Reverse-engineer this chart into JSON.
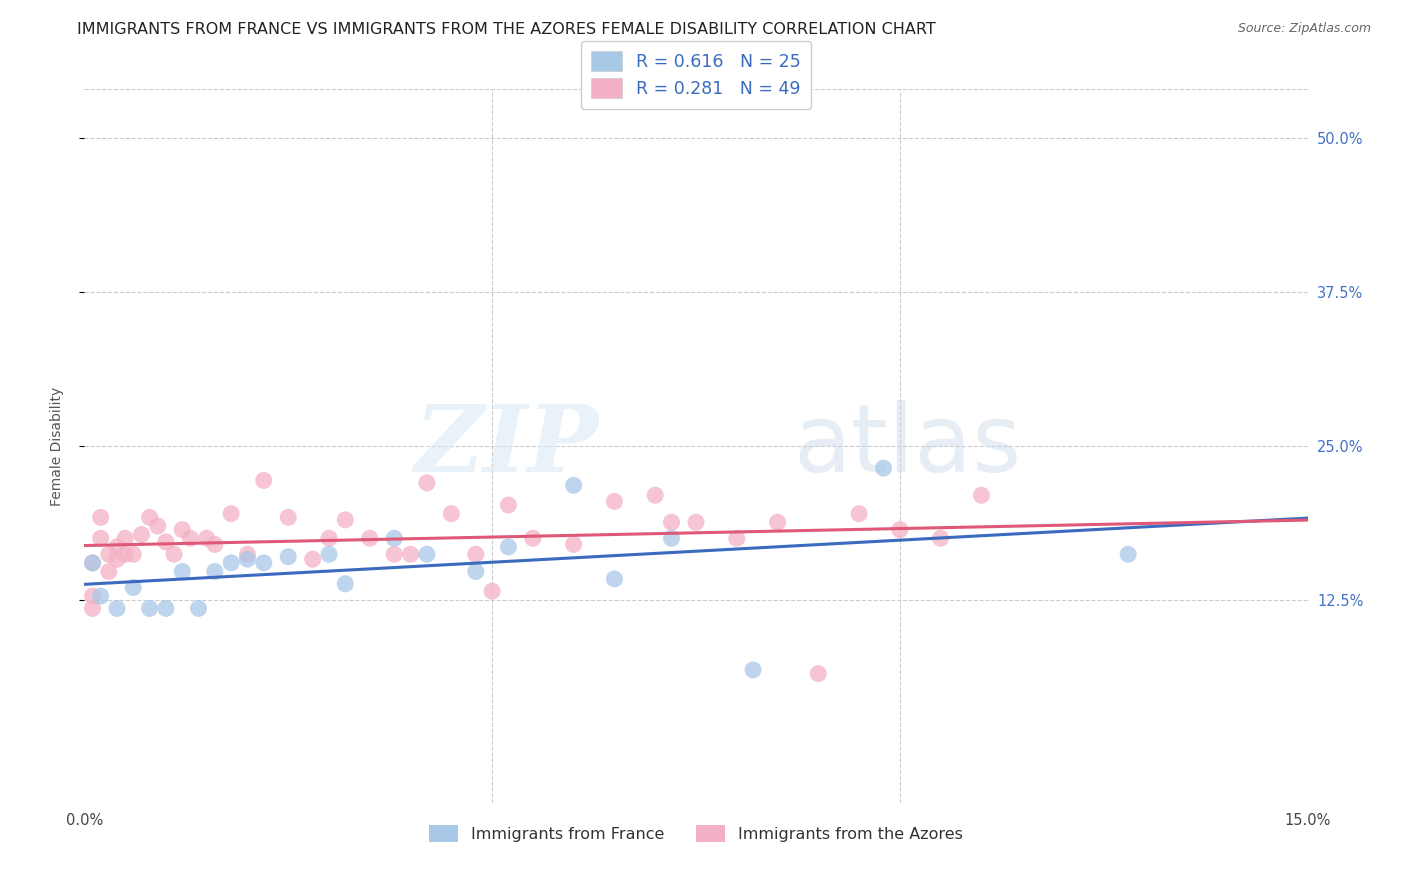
{
  "title": "IMMIGRANTS FROM FRANCE VS IMMIGRANTS FROM THE AZORES FEMALE DISABILITY CORRELATION CHART",
  "source": "Source: ZipAtlas.com",
  "ylabel": "Female Disability",
  "x_min": 0.0,
  "x_max": 0.15,
  "y_min": -0.04,
  "y_max": 0.54,
  "x_ticks": [
    0.0,
    0.05,
    0.1,
    0.15
  ],
  "x_tick_labels": [
    "0.0%",
    "",
    "",
    "15.0%"
  ],
  "y_ticks": [
    0.125,
    0.25,
    0.375,
    0.5
  ],
  "y_tick_labels": [
    "12.5%",
    "25.0%",
    "37.5%",
    "50.0%"
  ],
  "france_R": 0.616,
  "france_N": 25,
  "azores_R": 0.281,
  "azores_N": 49,
  "france_color": "#a8c8e8",
  "azores_color": "#f4b0c4",
  "france_line_color": "#3a6bbf",
  "azores_line_color": "#e05878",
  "france_x": [
    0.001,
    0.002,
    0.004,
    0.006,
    0.008,
    0.01,
    0.012,
    0.014,
    0.016,
    0.018,
    0.02,
    0.022,
    0.025,
    0.03,
    0.032,
    0.038,
    0.042,
    0.048,
    0.052,
    0.06,
    0.065,
    0.072,
    0.082,
    0.098,
    0.128
  ],
  "france_y": [
    0.155,
    0.128,
    0.118,
    0.135,
    0.118,
    0.118,
    0.148,
    0.118,
    0.148,
    0.155,
    0.158,
    0.155,
    0.16,
    0.162,
    0.138,
    0.175,
    0.162,
    0.148,
    0.168,
    0.218,
    0.142,
    0.175,
    0.068,
    0.232,
    0.162
  ],
  "azores_x": [
    0.001,
    0.001,
    0.001,
    0.002,
    0.002,
    0.003,
    0.003,
    0.004,
    0.004,
    0.005,
    0.005,
    0.006,
    0.007,
    0.008,
    0.009,
    0.01,
    0.011,
    0.012,
    0.013,
    0.015,
    0.016,
    0.018,
    0.02,
    0.022,
    0.025,
    0.028,
    0.03,
    0.032,
    0.035,
    0.038,
    0.04,
    0.042,
    0.045,
    0.048,
    0.05,
    0.052,
    0.055,
    0.06,
    0.065,
    0.07,
    0.072,
    0.075,
    0.08,
    0.085,
    0.09,
    0.095,
    0.1,
    0.105,
    0.11
  ],
  "azores_y": [
    0.155,
    0.128,
    0.118,
    0.192,
    0.175,
    0.162,
    0.148,
    0.158,
    0.168,
    0.162,
    0.175,
    0.162,
    0.178,
    0.192,
    0.185,
    0.172,
    0.162,
    0.182,
    0.175,
    0.175,
    0.17,
    0.195,
    0.162,
    0.222,
    0.192,
    0.158,
    0.175,
    0.19,
    0.175,
    0.162,
    0.162,
    0.22,
    0.195,
    0.162,
    0.132,
    0.202,
    0.175,
    0.17,
    0.205,
    0.21,
    0.188,
    0.188,
    0.175,
    0.188,
    0.065,
    0.195,
    0.182,
    0.175,
    0.21
  ],
  "watermark_zip": "ZIP",
  "watermark_atlas": "atlas",
  "bg_color": "#ffffff",
  "grid_color": "#cccccc",
  "title_fontsize": 11.5,
  "axis_label_fontsize": 10,
  "tick_fontsize": 10.5,
  "legend_fontsize": 12.5
}
